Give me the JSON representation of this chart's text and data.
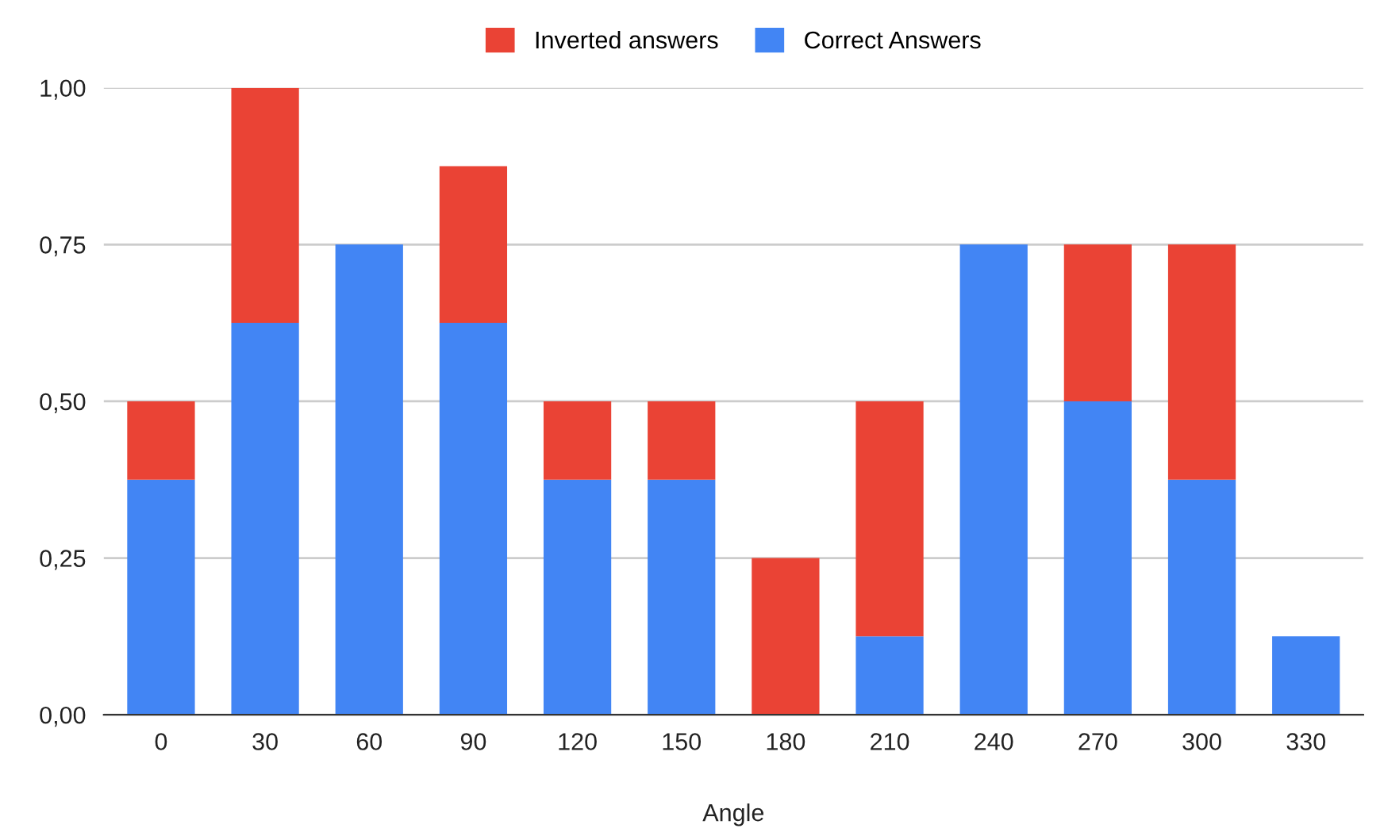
{
  "chart_data": {
    "type": "bar",
    "stacked": true,
    "xlabel": "Angle",
    "categories": [
      "0",
      "30",
      "60",
      "90",
      "120",
      "150",
      "180",
      "210",
      "240",
      "270",
      "300",
      "330"
    ],
    "series": [
      {
        "name": "Correct Answers",
        "color": "#4285f4",
        "values": [
          0.375,
          0.625,
          0.75,
          0.625,
          0.375,
          0.375,
          0,
          0.125,
          0.75,
          0.5,
          0.375,
          0.125
        ]
      },
      {
        "name": "Inverted answers",
        "color": "#ea4335",
        "values": [
          0.125,
          0.375,
          0,
          0.25,
          0.125,
          0.125,
          0.25,
          0.375,
          0,
          0.25,
          0.375,
          0
        ]
      }
    ],
    "ylim": [
      0,
      1
    ],
    "yticks": [
      {
        "value": 0,
        "label": "0,00"
      },
      {
        "value": 0.25,
        "label": "0,25"
      },
      {
        "value": 0.5,
        "label": "0,50"
      },
      {
        "value": 0.75,
        "label": "0,75"
      },
      {
        "value": 1,
        "label": "1,00"
      }
    ],
    "grid": "y",
    "legend": "top"
  }
}
